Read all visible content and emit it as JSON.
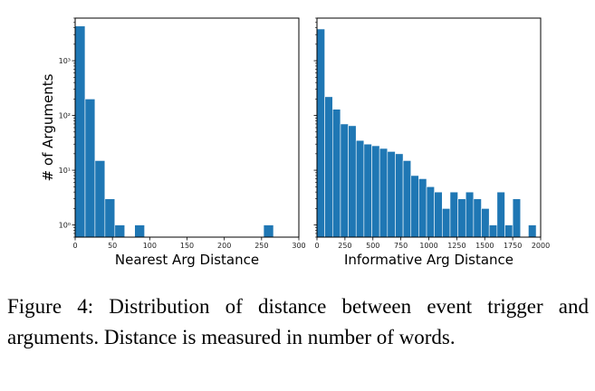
{
  "chart_data": [
    {
      "type": "bar",
      "subtype": "histogram",
      "xlabel": "Nearest Arg Distance",
      "ylabel": "# of Arguments",
      "yscale": "log",
      "xlim": [
        0,
        300
      ],
      "ylim": [
        0.6,
        6000
      ],
      "xticks": [
        0,
        50,
        100,
        150,
        200,
        250,
        300
      ],
      "xtick_labels": [
        "0",
        "50",
        "100",
        "150",
        "200",
        "250",
        "300"
      ],
      "yticks": [
        1,
        10,
        100,
        1000
      ],
      "ytick_labels": [
        "10⁰",
        "10¹",
        "10²",
        "10³"
      ],
      "bin_width": 13.3,
      "bin_starts": [
        0,
        13.3,
        26.6,
        39.9,
        53.2,
        79.8,
        252.7
      ],
      "values": [
        4300,
        200,
        15,
        3,
        1,
        1,
        1
      ],
      "color": "#1f77b4",
      "grid": false
    },
    {
      "type": "bar",
      "subtype": "histogram",
      "xlabel": "Informative Arg Distance",
      "ylabel": "",
      "yscale": "log",
      "xlim": [
        0,
        2000
      ],
      "ylim": [
        0.6,
        6000
      ],
      "xticks": [
        0,
        250,
        500,
        750,
        1000,
        1250,
        1500,
        1750,
        2000
      ],
      "xtick_labels": [
        "0",
        "250",
        "500",
        "750",
        "1000",
        "1250",
        "1500",
        "1750",
        "2000"
      ],
      "bin_width": 70,
      "values": [
        3800,
        220,
        130,
        70,
        65,
        35,
        30,
        28,
        25,
        22,
        20,
        15,
        8,
        7,
        5,
        4,
        2,
        4,
        3,
        4,
        3,
        2,
        1,
        4,
        1,
        3,
        0,
        1
      ],
      "color": "#1f77b4",
      "grid": false
    }
  ],
  "caption": "Figure 4:  Distribution of distance between event trigger and arguments. Distance is measured in number of words."
}
